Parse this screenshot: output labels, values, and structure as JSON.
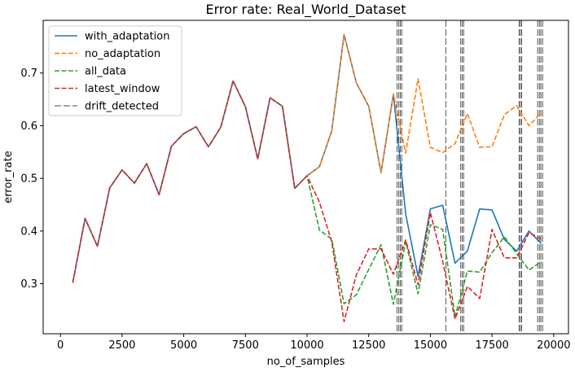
{
  "chart_data": {
    "type": "line",
    "title": "Error rate: Real_World_Dataset",
    "xlabel": "no_of_samples",
    "ylabel": "error_rate",
    "xlim": [
      -700,
      20600
    ],
    "ylim": [
      0.205,
      0.8
    ],
    "xticks": [
      0,
      2500,
      5000,
      7500,
      10000,
      12500,
      15000,
      17500,
      20000
    ],
    "yticks": [
      0.3,
      0.4,
      0.5,
      0.6,
      0.7
    ],
    "ytick_labels": [
      "0.3",
      "0.4",
      "0.5",
      "0.6",
      "0.7"
    ],
    "grid": false,
    "legend_position": "upper-left",
    "x": [
      500,
      1000,
      1500,
      2000,
      2500,
      3000,
      3500,
      4000,
      4500,
      5000,
      5500,
      6000,
      6500,
      7000,
      7500,
      8000,
      8500,
      9000,
      9500,
      10000,
      10500,
      11000,
      11500,
      12000,
      12500,
      13000,
      13500,
      14000,
      14500,
      15000,
      15500,
      16000,
      16500,
      17000,
      17500,
      18000,
      18500,
      19000,
      19500
    ],
    "series": [
      {
        "name": "with_adaptation",
        "color": "#1f77b4",
        "dash": "solid",
        "values": [
          0.302,
          0.424,
          0.371,
          0.482,
          0.516,
          0.491,
          0.528,
          0.469,
          0.561,
          0.585,
          0.598,
          0.56,
          0.597,
          0.685,
          0.636,
          0.537,
          0.653,
          0.637,
          0.481,
          0.505,
          0.522,
          0.59,
          0.773,
          0.681,
          0.637,
          0.511,
          0.66,
          0.432,
          0.314,
          0.442,
          0.449,
          0.339,
          0.362,
          0.442,
          0.44,
          0.384,
          0.362,
          0.4,
          0.376
        ]
      },
      {
        "name": "no_adaptation",
        "color": "#ff7f0e",
        "dash": "dashed",
        "values": [
          0.302,
          0.424,
          0.371,
          0.482,
          0.516,
          0.491,
          0.528,
          0.469,
          0.561,
          0.585,
          0.598,
          0.56,
          0.597,
          0.685,
          0.636,
          0.537,
          0.653,
          0.637,
          0.481,
          0.505,
          0.522,
          0.59,
          0.773,
          0.681,
          0.637,
          0.511,
          0.66,
          0.548,
          0.689,
          0.559,
          0.549,
          0.566,
          0.623,
          0.559,
          0.56,
          0.621,
          0.638,
          0.6,
          0.625
        ]
      },
      {
        "name": "all_data",
        "color": "#2ca02c",
        "dash": "dashed",
        "values": [
          0.302,
          0.424,
          0.371,
          0.482,
          0.516,
          0.491,
          0.528,
          0.469,
          0.561,
          0.585,
          0.598,
          0.56,
          0.597,
          0.685,
          0.636,
          0.537,
          0.653,
          0.637,
          0.481,
          0.505,
          0.402,
          0.385,
          0.262,
          0.279,
          0.327,
          0.374,
          0.261,
          0.38,
          0.281,
          0.412,
          0.403,
          0.237,
          0.324,
          0.322,
          0.359,
          0.389,
          0.357,
          0.326,
          0.342
        ]
      },
      {
        "name": "latest_window",
        "color": "#d62728",
        "dash": "dashed",
        "values": [
          0.302,
          0.424,
          0.371,
          0.482,
          0.516,
          0.491,
          0.528,
          0.469,
          0.561,
          0.585,
          0.598,
          0.56,
          0.597,
          0.685,
          0.636,
          0.537,
          0.653,
          0.637,
          0.481,
          0.505,
          0.455,
          0.38,
          0.228,
          0.317,
          0.366,
          0.366,
          0.318,
          0.383,
          0.298,
          0.435,
          0.342,
          0.233,
          0.295,
          0.272,
          0.403,
          0.349,
          0.349,
          0.397,
          0.385
        ]
      }
    ],
    "drift_detected": {
      "name": "drift_detected",
      "color": "#444444",
      "x": [
        13650,
        13720,
        13780,
        13840,
        15630,
        16230,
        16290,
        16350,
        18600,
        18650,
        18700,
        19350,
        19420,
        19480,
        19550
      ]
    }
  }
}
